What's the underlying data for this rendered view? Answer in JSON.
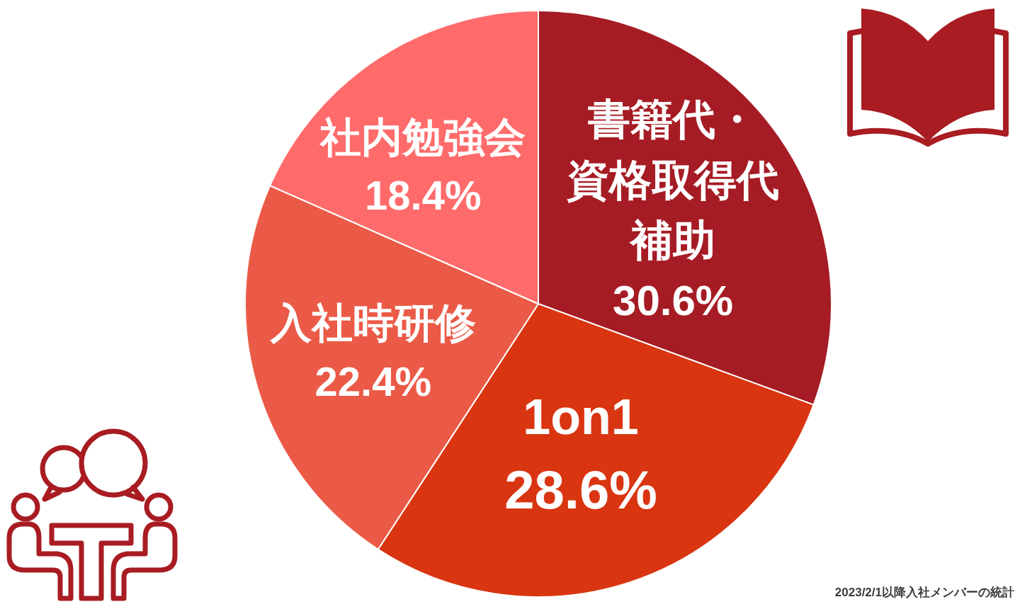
{
  "chart_data": {
    "type": "pie",
    "categories": [
      "書籍代・資格取得代補助",
      "1on1",
      "入社時研修",
      "社内勉強会"
    ],
    "values": [
      30.6,
      28.6,
      22.4,
      18.4
    ],
    "value_labels": [
      "30.6%",
      "28.6%",
      "22.4%",
      "18.4%"
    ],
    "colors": [
      "#a61c24",
      "#d93511",
      "#eb5a47",
      "#ff6b6b"
    ],
    "annotations": [
      "2023/2/1以降入社メンバーの統計"
    ]
  }
}
